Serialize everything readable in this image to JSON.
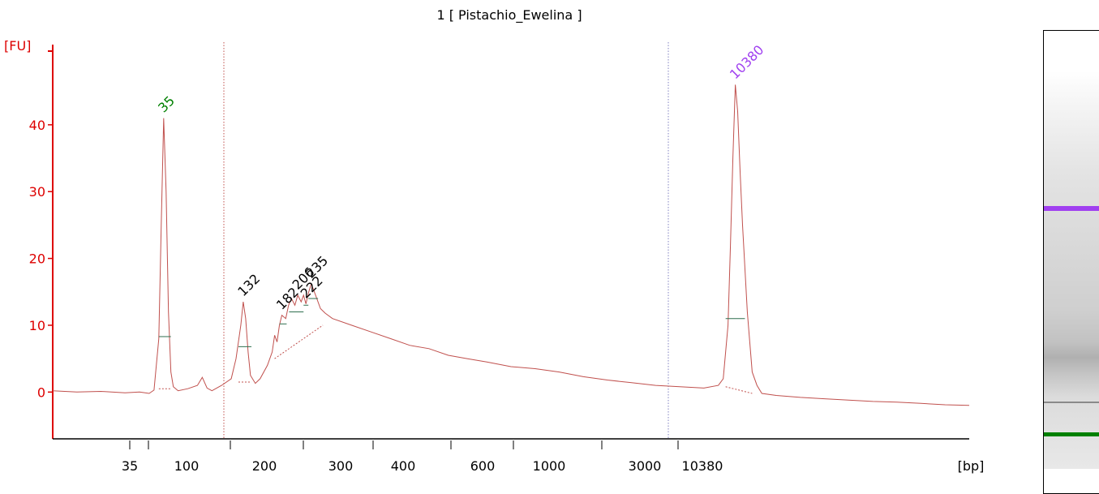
{
  "chart_data": {
    "type": "line",
    "title": "1  [ Pistachio_Ewelina ]",
    "ylabel": "[FU]",
    "xlabel": "[bp]",
    "ylim": [
      -7,
      52
    ],
    "yticks": [
      0,
      10,
      20,
      30,
      40
    ],
    "xticks": [
      "35",
      "100",
      "200",
      "300",
      "400",
      "600",
      "1000",
      "3000",
      "10380"
    ],
    "colors": {
      "trace": "#c0504d",
      "axis": "#dd0000",
      "lower_marker": "#008000",
      "upper_marker": "#a040f0",
      "label": "#000000"
    },
    "series": [
      {
        "values": [
          [
            0,
            0.2
          ],
          [
            5,
            0.0
          ],
          [
            10,
            0.1
          ],
          [
            15,
            -0.1
          ],
          [
            18,
            0.0
          ],
          [
            20,
            -0.2
          ],
          [
            21,
            0.3
          ],
          [
            22,
            8.0
          ],
          [
            22.5,
            25.0
          ],
          [
            23,
            41.0
          ],
          [
            23.5,
            30.0
          ],
          [
            24,
            12.0
          ],
          [
            24.5,
            3.0
          ],
          [
            25,
            0.8
          ],
          [
            26,
            0.2
          ],
          [
            28,
            0.5
          ],
          [
            30,
            1.0
          ],
          [
            31,
            2.2
          ],
          [
            32,
            0.6
          ],
          [
            33,
            0.2
          ],
          [
            35,
            1.0
          ],
          [
            37,
            2.0
          ],
          [
            38,
            5.0
          ],
          [
            39,
            10.0
          ],
          [
            39.5,
            13.5
          ],
          [
            40,
            11.0
          ],
          [
            40.5,
            6.0
          ],
          [
            41,
            2.5
          ],
          [
            42,
            1.3
          ],
          [
            43,
            2.0
          ],
          [
            44.5,
            4.0
          ],
          [
            45.5,
            6.0
          ],
          [
            46,
            8.5
          ],
          [
            46.5,
            7.5
          ],
          [
            47,
            10.0
          ],
          [
            47.5,
            11.5
          ],
          [
            48.3,
            11.0
          ],
          [
            48.9,
            13.0
          ],
          [
            49.5,
            14.0
          ],
          [
            50.2,
            13.0
          ],
          [
            50.8,
            14.5
          ],
          [
            51.5,
            13.5
          ],
          [
            52.0,
            14.5
          ],
          [
            52.5,
            13.2
          ],
          [
            53.0,
            14.8
          ],
          [
            53.6,
            16.2
          ],
          [
            54.5,
            14.5
          ],
          [
            55.5,
            12.5
          ],
          [
            56.5,
            11.8
          ],
          [
            58,
            11.0
          ],
          [
            62,
            10.0
          ],
          [
            66,
            9.0
          ],
          [
            70,
            8.0
          ],
          [
            74,
            7.0
          ],
          [
            78,
            6.5
          ],
          [
            82,
            5.5
          ],
          [
            86,
            5.0
          ],
          [
            90,
            4.5
          ],
          [
            95,
            3.8
          ],
          [
            100,
            3.5
          ],
          [
            105,
            3.0
          ],
          [
            110,
            2.3
          ],
          [
            115,
            1.8
          ],
          [
            120,
            1.4
          ],
          [
            125,
            1.0
          ],
          [
            130,
            0.8
          ],
          [
            135,
            0.6
          ],
          [
            138,
            1.0
          ],
          [
            139,
            2.0
          ],
          [
            140,
            10.0
          ],
          [
            140.5,
            22.0
          ],
          [
            141,
            35.0
          ],
          [
            141.5,
            46.0
          ],
          [
            142,
            42.0
          ],
          [
            142.5,
            33.0
          ],
          [
            143,
            25.0
          ],
          [
            144,
            12.0
          ],
          [
            145,
            3.0
          ],
          [
            146,
            1.0
          ],
          [
            147,
            -0.2
          ],
          [
            150,
            -0.5
          ],
          [
            155,
            -0.8
          ],
          [
            160,
            -1.0
          ],
          [
            165,
            -1.2
          ],
          [
            170,
            -1.4
          ],
          [
            175,
            -1.5
          ],
          [
            180,
            -1.7
          ],
          [
            185,
            -1.9
          ],
          [
            190,
            -2.0
          ]
        ]
      }
    ],
    "peak_labels": [
      {
        "label": "35",
        "x": 23,
        "y": 41,
        "color": "#008000"
      },
      {
        "label": "132",
        "x": 39.5,
        "y": 13.5,
        "color": "#000000"
      },
      {
        "label": "182",
        "x": 47.5,
        "y": 11.5,
        "color": "#000000"
      },
      {
        "label": "206",
        "x": 50.8,
        "y": 14.5,
        "color": "#000000"
      },
      {
        "label": "222",
        "x": 52.5,
        "y": 13.2,
        "color": "#000000"
      },
      {
        "label": "235",
        "x": 53.6,
        "y": 16.2,
        "color": "#000000"
      },
      {
        "label": "10380",
        "x": 141.5,
        "y": 46,
        "color": "#a040f0"
      }
    ],
    "grid": false
  }
}
